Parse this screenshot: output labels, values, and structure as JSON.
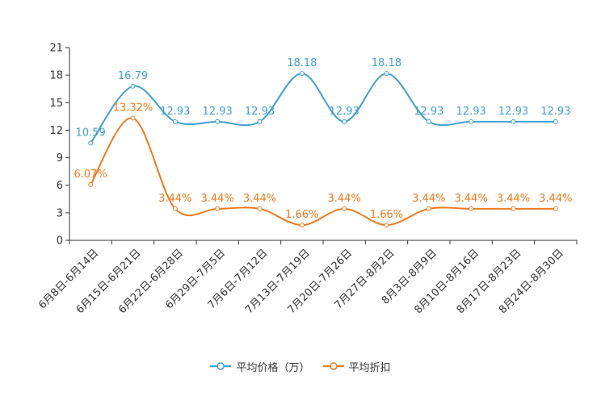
{
  "colors": {
    "series1": "#3f9fcf",
    "series2": "#f07a1a",
    "axis": "#333333"
  },
  "legend": [
    {
      "label": "平均价格（万）"
    },
    {
      "label": "平均折扣"
    }
  ],
  "chart_data": {
    "type": "line",
    "categories": [
      "6月8日-6月14日",
      "6月15日-6月21日",
      "6月22日-6月28日",
      "6月29日-7月5日",
      "7月6日-7月12日",
      "7月13日-7月19日",
      "7月20日-7月26日",
      "7月27日-8月2日",
      "8月3日-8月9日",
      "8月10日-8月16日",
      "8月17日-8月23日",
      "8月24日-8月30日"
    ],
    "ylim": [
      0,
      21
    ],
    "yticks": [
      0,
      3,
      6,
      9,
      12,
      15,
      18,
      21
    ],
    "grid": false,
    "legend_position": "bottom",
    "series": [
      {
        "name": "平均价格（万）",
        "values": [
          10.59,
          16.79,
          12.93,
          12.93,
          12.93,
          18.18,
          12.93,
          18.18,
          12.93,
          12.93,
          12.93,
          12.93
        ],
        "labels": [
          "10.59",
          "16.79",
          "12.93",
          "12.93",
          "12.93",
          "18.18",
          "12.93",
          "18.18",
          "12.93",
          "12.93",
          "12.93",
          "12.93"
        ]
      },
      {
        "name": "平均折扣",
        "values": [
          6.07,
          13.32,
          3.44,
          3.44,
          3.44,
          1.66,
          3.44,
          1.66,
          3.44,
          3.44,
          3.44,
          3.44
        ],
        "labels": [
          "6.07%",
          "13.32%",
          "3.44%",
          "3.44%",
          "3.44%",
          "1.66%",
          "3.44%",
          "1.66%",
          "3.44%",
          "3.44%",
          "3.44%",
          "3.44%"
        ]
      }
    ]
  }
}
